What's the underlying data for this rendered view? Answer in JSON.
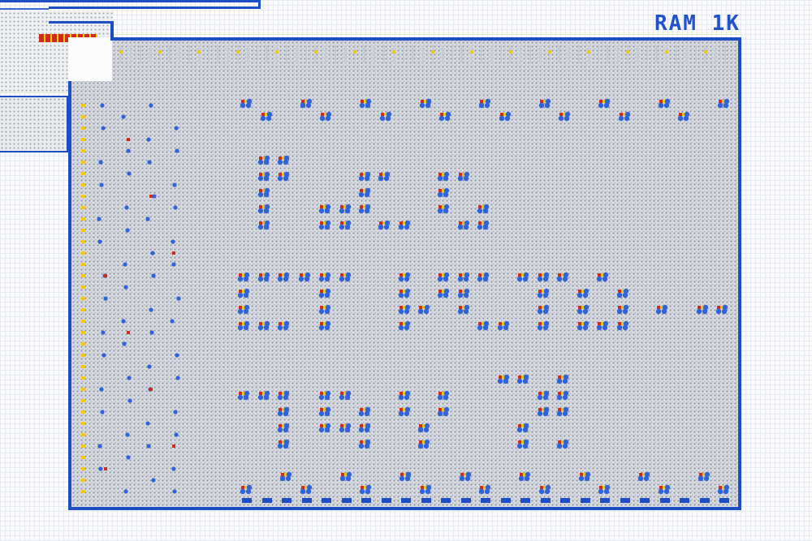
{
  "ram": {
    "title": "RAM 1K"
  },
  "colors": {
    "wire": "#1d4fc4",
    "lit_cell": "#2e63d9",
    "red_bit": "#d12b1b",
    "yellow_bit": "#f0c818",
    "board": "#d9dce2",
    "background": "#fcfcfd"
  },
  "glyph_pixel_icon": "ram-lit-cell-icon"
}
